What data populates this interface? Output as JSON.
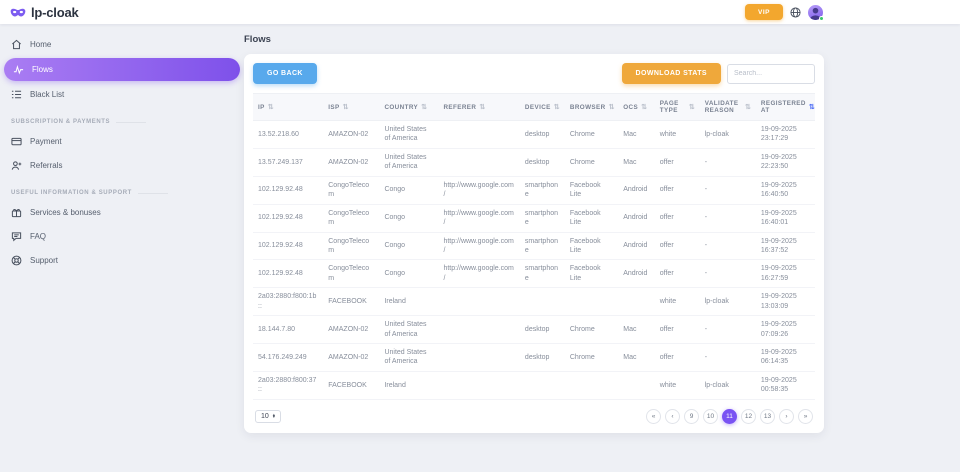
{
  "brand": {
    "name": "lp-cloak"
  },
  "topbar": {
    "vip_label": "VIP"
  },
  "sidebar": {
    "items": [
      {
        "label": "Home",
        "active": false
      },
      {
        "label": "Flows",
        "active": true
      },
      {
        "label": "Black List",
        "active": false
      }
    ],
    "sections": [
      {
        "title": "SUBSCRIPTION & PAYMENTS",
        "items": [
          {
            "label": "Payment"
          },
          {
            "label": "Referrals"
          }
        ]
      },
      {
        "title": "USEFUL INFORMATION & SUPPORT",
        "items": [
          {
            "label": "Services & bonuses"
          },
          {
            "label": "FAQ"
          },
          {
            "label": "Support"
          }
        ]
      }
    ]
  },
  "main": {
    "title": "Flows",
    "go_back_label": "GO BACK",
    "download_stats_label": "DOWNLOAD STATS",
    "search_placeholder": "Search..."
  },
  "table": {
    "columns": [
      "IP",
      "ISP",
      "COUNTRY",
      "REFERER",
      "DEVICE",
      "BROWSER",
      "OCS",
      "PAGE TYPE",
      "VALIDATE REASON",
      "REGISTERED AT"
    ],
    "sorted_column": "REGISTERED AT",
    "fields": [
      "ip",
      "isp",
      "country",
      "referer",
      "device",
      "browser",
      "ocs",
      "page_type",
      "validate_reason",
      "registered_at"
    ],
    "rows": [
      {
        "ip": "13.52.218.60",
        "isp": "AMAZON-02",
        "country": "United States of America",
        "referer": "",
        "device": "desktop",
        "browser": "Chrome",
        "ocs": "Mac",
        "page_type": "white",
        "validate_reason": "lp-cloak",
        "registered_at": "19-09-2025 23:17:29"
      },
      {
        "ip": "13.57.249.137",
        "isp": "AMAZON-02",
        "country": "United States of America",
        "referer": "",
        "device": "desktop",
        "browser": "Chrome",
        "ocs": "Mac",
        "page_type": "offer",
        "validate_reason": "-",
        "registered_at": "19-09-2025 22:23:50"
      },
      {
        "ip": "102.129.92.48",
        "isp": "CongoTelecom",
        "country": "Congo",
        "referer": "http://www.google.com/",
        "device": "smartphone",
        "browser": "Facebook Lite",
        "ocs": "Android",
        "page_type": "offer",
        "validate_reason": "-",
        "registered_at": "19-09-2025 16:40:50"
      },
      {
        "ip": "102.129.92.48",
        "isp": "CongoTelecom",
        "country": "Congo",
        "referer": "http://www.google.com/",
        "device": "smartphone",
        "browser": "Facebook Lite",
        "ocs": "Android",
        "page_type": "offer",
        "validate_reason": "-",
        "registered_at": "19-09-2025 16:40:01"
      },
      {
        "ip": "102.129.92.48",
        "isp": "CongoTelecom",
        "country": "Congo",
        "referer": "http://www.google.com/",
        "device": "smartphone",
        "browser": "Facebook Lite",
        "ocs": "Android",
        "page_type": "offer",
        "validate_reason": "-",
        "registered_at": "19-09-2025 16:37:52"
      },
      {
        "ip": "102.129.92.48",
        "isp": "CongoTelecom",
        "country": "Congo",
        "referer": "http://www.google.com/",
        "device": "smartphone",
        "browser": "Facebook Lite",
        "ocs": "Android",
        "page_type": "offer",
        "validate_reason": "-",
        "registered_at": "19-09-2025 16:27:59"
      },
      {
        "ip": "2a03:2880:f800:1b::",
        "isp": "FACEBOOK",
        "country": "Ireland",
        "referer": "",
        "device": "",
        "browser": "",
        "ocs": "",
        "page_type": "white",
        "validate_reason": "lp-cloak",
        "registered_at": "19-09-2025 13:03:09"
      },
      {
        "ip": "18.144.7.80",
        "isp": "AMAZON-02",
        "country": "United States of America",
        "referer": "",
        "device": "desktop",
        "browser": "Chrome",
        "ocs": "Mac",
        "page_type": "offer",
        "validate_reason": "-",
        "registered_at": "19-09-2025 07:09:26"
      },
      {
        "ip": "54.176.249.249",
        "isp": "AMAZON-02",
        "country": "United States of America",
        "referer": "",
        "device": "desktop",
        "browser": "Chrome",
        "ocs": "Mac",
        "page_type": "offer",
        "validate_reason": "-",
        "registered_at": "19-09-2025 06:14:35"
      },
      {
        "ip": "2a03:2880:f800:37::",
        "isp": "FACEBOOK",
        "country": "Ireland",
        "referer": "",
        "device": "",
        "browser": "",
        "ocs": "",
        "page_type": "white",
        "validate_reason": "lp-cloak",
        "registered_at": "19-09-2025 00:58:35"
      }
    ]
  },
  "pagination": {
    "page_size": "10",
    "pages": [
      "9",
      "10",
      "11",
      "12",
      "13"
    ],
    "active_page": "11"
  },
  "icons": {
    "sort": "⇅",
    "first": "«",
    "prev": "‹",
    "next": "›",
    "last": "»",
    "stepper_up": "▴",
    "stepper_down": "▾"
  },
  "colors": {
    "accent_purple": "#7a53f3",
    "sidebar_gradient_start": "#aa7df3",
    "sidebar_gradient_end": "#7e51ea",
    "go_back_blue": "#58a9ec",
    "download_orange": "#efa83b",
    "vip_orange": "#f3a72e",
    "online_green": "#39c66b",
    "sorted_arrow_blue": "#4b6bf5"
  }
}
